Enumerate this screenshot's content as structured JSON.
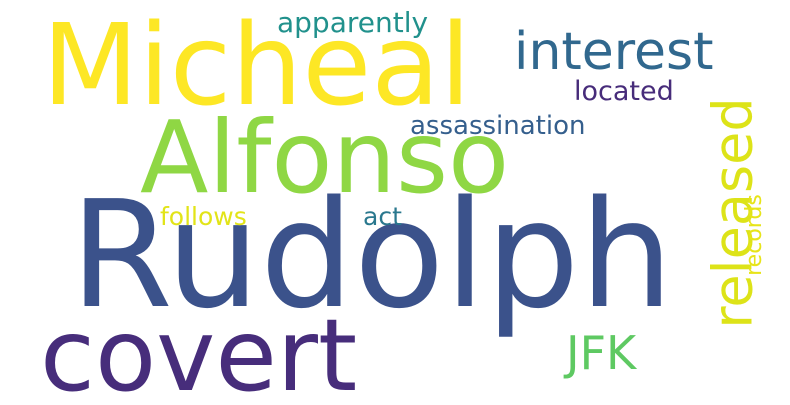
{
  "words": [
    {
      "text": "Rudolph",
      "color": "#3b528b"
    },
    {
      "text": "Micheal",
      "color": "#fde725"
    },
    {
      "text": "Alfonso",
      "color": "#8fd744"
    },
    {
      "text": "covert",
      "color": "#472d7b"
    },
    {
      "text": "interest",
      "color": "#31688e"
    },
    {
      "text": "released",
      "color": "#dde318"
    },
    {
      "text": "JFK",
      "color": "#5ec962"
    },
    {
      "text": "apparently",
      "color": "#21918c"
    },
    {
      "text": "located",
      "color": "#472c7a"
    },
    {
      "text": "assassination",
      "color": "#355f8d"
    },
    {
      "text": "follows",
      "color": "#e2e418"
    },
    {
      "text": "act",
      "color": "#2a788e"
    },
    {
      "text": "records",
      "color": "#e7e419"
    }
  ]
}
